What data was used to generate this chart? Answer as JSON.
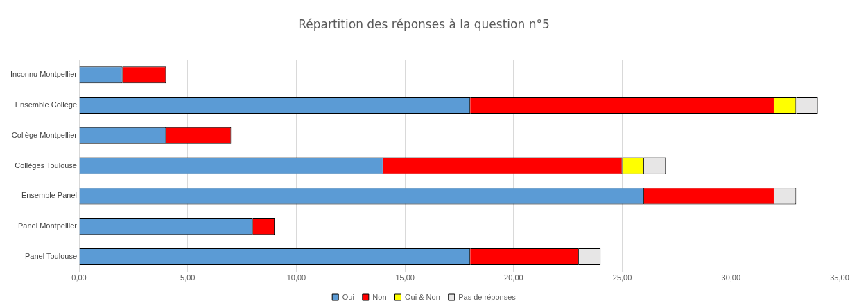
{
  "chart_data": {
    "type": "bar",
    "orientation": "horizontal",
    "stacked": true,
    "title": "Répartition des réponses à la question n°5",
    "categories": [
      "Inconnu Montpellier",
      "Ensemble Collège",
      "Collège Montpellier",
      "Collèges Toulouse",
      "Ensemble Panel",
      "Panel Montpellier",
      "Panel Toulouse"
    ],
    "series": [
      {
        "name": "Oui",
        "color": "#5b9bd5",
        "values": [
          2,
          18,
          4,
          14,
          26,
          8,
          18
        ]
      },
      {
        "name": "Non",
        "color": "#ff0000",
        "values": [
          2,
          14,
          3,
          11,
          6,
          1,
          5
        ]
      },
      {
        "name": "Oui & Non",
        "color": "#ffff00",
        "values": [
          0,
          1,
          0,
          1,
          0,
          0,
          0
        ]
      },
      {
        "name": "Pas de réponses",
        "color": "#e7e6e6",
        "values": [
          0,
          1,
          0,
          1,
          1,
          0,
          1
        ]
      }
    ],
    "xlim": [
      0,
      35
    ],
    "xticks": [
      {
        "value": 0,
        "label": "0,00"
      },
      {
        "value": 5,
        "label": "5,00"
      },
      {
        "value": 10,
        "label": "10,00"
      },
      {
        "value": 15,
        "label": "15,00"
      },
      {
        "value": 20,
        "label": "20,00"
      },
      {
        "value": 25,
        "label": "25,00"
      },
      {
        "value": 30,
        "label": "30,00"
      },
      {
        "value": 35,
        "label": "35,00"
      }
    ],
    "grid": "x",
    "legend": "bottom"
  }
}
